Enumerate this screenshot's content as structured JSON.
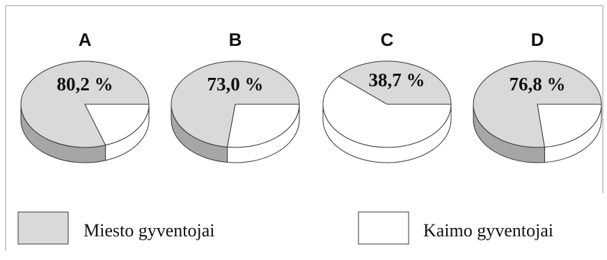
{
  "chart_data": {
    "type": "pie",
    "charts": [
      {
        "label": "A",
        "urban_pct": 80.2,
        "value_text": "80,2 %"
      },
      {
        "label": "B",
        "urban_pct": 73.0,
        "value_text": "73,0 %"
      },
      {
        "label": "C",
        "urban_pct": 38.7,
        "value_text": "38,7 %"
      },
      {
        "label": "D",
        "urban_pct": 76.8,
        "value_text": "76,8 %"
      }
    ],
    "legend": [
      {
        "name": "Miesto gyventojai",
        "color": "#d9d9d9"
      },
      {
        "name": "Kaimo gyventojai",
        "color": "#ffffff"
      }
    ],
    "legend_position": "bottom"
  },
  "colors": {
    "urban_top": "#d9d9d9",
    "urban_side": "#a6a6a6",
    "rural": "#ffffff",
    "stroke": "#333333",
    "border": "#999999"
  }
}
